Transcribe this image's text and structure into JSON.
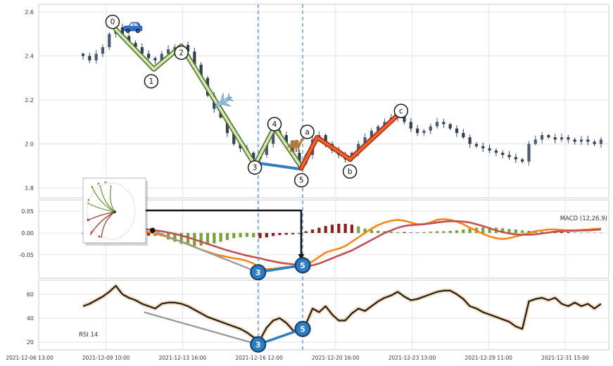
{
  "colors": {
    "accent_blue": "#2e7ec4",
    "impulse_green_edge": "#47702a",
    "impulse_green_fill": "#d6e8b0",
    "correction_edge": "#9e2d0e",
    "correction_fill": "#f2612e",
    "macd_line": "#f58518",
    "signal_line": "#c44e52",
    "hist_green": "#74a33c",
    "hist_red": "#8e1d1d",
    "candle_up": "#4a5a74",
    "candle_down": "#323e52",
    "vline": "#5f8cb8",
    "rsi_line": "#2b1a12",
    "rsi_glow": "#ecd9b8",
    "gray_trend": "#999999",
    "grid": "#e4e4e4",
    "panel_border": "#c9c9c9",
    "marker_fill": "#2e7ec4",
    "marker_edge": "#16406e"
  },
  "chart_data": {
    "type": "candlestick",
    "title": "",
    "x_labels": [
      "2021-12-06 13:00",
      "2021-12-09 10:00",
      "2021-12-13 16:00",
      "2021-12-16 12:00",
      "2021-12-20 16:00",
      "2021-12-23 13:00",
      "2021-12-29 11:00",
      "2021-12-31 15:00"
    ],
    "price_panel": {
      "y_ticks": [
        2.6,
        2.4,
        2.2,
        2.0,
        1.8
      ],
      "closes": [
        2.4,
        2.38,
        2.41,
        2.44,
        2.5,
        2.53,
        2.49,
        2.46,
        2.44,
        2.41,
        2.39,
        2.38,
        2.41,
        2.43,
        2.44,
        2.45,
        2.42,
        2.36,
        2.3,
        2.22,
        2.16,
        2.12,
        2.05,
        2.0,
        1.98,
        1.96,
        1.93,
        1.95,
        2.0,
        2.06,
        2.04,
        2.0,
        1.96,
        1.91,
        1.95,
        2.02,
        2.04,
        2.0,
        1.97,
        1.95,
        1.93,
        1.96,
        2.0,
        2.03,
        2.06,
        2.08,
        2.1,
        2.12,
        2.14,
        2.1,
        2.07,
        2.05,
        2.06,
        2.08,
        2.1,
        2.09,
        2.07,
        2.05,
        2.03,
        2.0,
        1.99,
        1.98,
        1.97,
        1.96,
        1.95,
        1.94,
        1.93,
        1.92,
        2.0,
        2.02,
        2.04,
        2.03,
        2.02,
        2.03,
        2.02,
        2.01,
        2.02,
        2.01,
        2.0,
        2.02
      ],
      "waves": [
        {
          "label": "0",
          "bar": 4.5,
          "price": 2.555
        },
        {
          "label": "1",
          "bar": 10.4,
          "price": 2.285
        },
        {
          "label": "2",
          "bar": 15.0,
          "price": 2.415
        },
        {
          "label": "3",
          "bar": 26.2,
          "price": 1.893
        },
        {
          "label": "4",
          "bar": 29.2,
          "price": 2.09
        },
        {
          "label": "5",
          "bar": 33.3,
          "price": 1.835
        },
        {
          "label": "a",
          "bar": 34.2,
          "price": 2.055
        },
        {
          "label": "b",
          "bar": 40.7,
          "price": 1.875
        },
        {
          "label": "c",
          "bar": 48.5,
          "price": 2.15
        }
      ],
      "impulse_line": [
        [
          5,
          2.52
        ],
        [
          10.8,
          2.34
        ],
        [
          15,
          2.445
        ],
        [
          26.2,
          1.905
        ],
        [
          29.2,
          2.075
        ],
        [
          33.3,
          1.895
        ]
      ],
      "divergence_line": [
        [
          26.2,
          1.915
        ],
        [
          33.3,
          1.885
        ]
      ],
      "correction_line": [
        [
          33.3,
          1.89
        ],
        [
          35.7,
          2.03
        ],
        [
          40.7,
          1.93
        ],
        [
          48.5,
          2.145
        ]
      ]
    },
    "macd_panel": {
      "label": "MACD (12,26,9)",
      "y_ticks": [
        0.05,
        0,
        -0.05
      ],
      "macd": [
        0.015,
        0.014,
        0.013,
        0.012,
        0.011,
        0.01,
        0.008,
        0.006,
        0.005,
        0.003,
        0.002,
        -0.002,
        -0.005,
        -0.01,
        -0.015,
        -0.02,
        -0.025,
        -0.032,
        -0.038,
        -0.043,
        -0.048,
        -0.052,
        -0.055,
        -0.058,
        -0.06,
        -0.064,
        -0.07,
        -0.08,
        -0.083,
        -0.082,
        -0.08,
        -0.078,
        -0.077,
        -0.078,
        -0.073,
        -0.065,
        -0.055,
        -0.045,
        -0.04,
        -0.036,
        -0.03,
        -0.02,
        -0.01,
        0.0,
        0.01,
        0.018,
        0.024,
        0.028,
        0.03,
        0.028,
        0.024,
        0.02,
        0.02,
        0.024,
        0.03,
        0.032,
        0.03,
        0.026,
        0.02,
        0.012,
        0.005,
        -0.002,
        -0.008,
        -0.012,
        -0.014,
        -0.012,
        -0.008,
        -0.004,
        0.0,
        0.004,
        0.006,
        0.008,
        0.008,
        0.007,
        0.006,
        0.006,
        0.007,
        0.008,
        0.009,
        0.01
      ],
      "signal": [
        0.018,
        0.017,
        0.017,
        0.016,
        0.015,
        0.014,
        0.013,
        0.012,
        0.01,
        0.009,
        0.008,
        0.006,
        0.004,
        0.001,
        -0.002,
        -0.006,
        -0.01,
        -0.015,
        -0.02,
        -0.025,
        -0.03,
        -0.035,
        -0.04,
        -0.044,
        -0.048,
        -0.052,
        -0.055,
        -0.058,
        -0.062,
        -0.065,
        -0.068,
        -0.07,
        -0.072,
        -0.074,
        -0.075,
        -0.074,
        -0.07,
        -0.064,
        -0.058,
        -0.052,
        -0.046,
        -0.04,
        -0.032,
        -0.024,
        -0.016,
        -0.008,
        0.0,
        0.006,
        0.012,
        0.016,
        0.018,
        0.019,
        0.02,
        0.022,
        0.024,
        0.026,
        0.027,
        0.027,
        0.026,
        0.024,
        0.02,
        0.016,
        0.011,
        0.006,
        0.002,
        -0.001,
        -0.003,
        -0.004,
        -0.004,
        -0.003,
        -0.001,
        0.001,
        0.003,
        0.004,
        0.005,
        0.005,
        0.006,
        0.006,
        0.007,
        0.008
      ],
      "hist": [
        -0.002,
        -0.002,
        -0.003,
        -0.003,
        -0.003,
        -0.004,
        -0.004,
        -0.005,
        -0.005,
        -0.005,
        -0.006,
        -0.007,
        -0.008,
        -0.015,
        -0.02,
        -0.025,
        -0.028,
        -0.03,
        -0.029,
        -0.027,
        -0.024,
        -0.02,
        -0.016,
        -0.012,
        -0.01,
        -0.009,
        -0.01,
        -0.012,
        -0.01,
        -0.007,
        -0.005,
        -0.004,
        -0.003,
        -0.002,
        0.004,
        0.008,
        0.012,
        0.016,
        0.019,
        0.021,
        0.021,
        0.019,
        0.015,
        0.01,
        0.007,
        0.005,
        0.004,
        0.003,
        0.002,
        0.002,
        0.001,
        0.001,
        0.002,
        0.003,
        0.004,
        0.004,
        0.005,
        0.006,
        0.008,
        0.01,
        0.012,
        0.013,
        0.013,
        0.012,
        0.011,
        0.009,
        0.008,
        0.006,
        0.005,
        0.004,
        0.003,
        0.003,
        0.002,
        0.002,
        0.002,
        0.001,
        0.001,
        0.001,
        0.001,
        0.001
      ],
      "hist_colors": "ggggggrrrrrggggggggggggggggrrrrrrrrrrrrrrrgggggggrrrgggggggggggggggggggrrrrggggg",
      "trend_line": [
        [
          10.6,
          0.006
        ],
        [
          26.7,
          -0.09
        ]
      ],
      "dot": [
        10.6,
        0.006
      ],
      "markers": [
        {
          "label": "3",
          "bar": 26.7,
          "value": -0.09
        },
        {
          "label": "5",
          "bar": 33.5,
          "value": -0.074
        }
      ]
    },
    "rsi_panel": {
      "label": "RSI 14",
      "y_ticks": [
        60,
        40,
        20
      ],
      "rsi": [
        50,
        52,
        55,
        58,
        62,
        67,
        60,
        57,
        55,
        52,
        50,
        48,
        52,
        53,
        53,
        52,
        50,
        47,
        44,
        41,
        39,
        37,
        35,
        33,
        31,
        28,
        24,
        22,
        32,
        38,
        40,
        36,
        30,
        27,
        35,
        48,
        45,
        50,
        43,
        38,
        38,
        44,
        48,
        46,
        50,
        54,
        57,
        59,
        62,
        58,
        55,
        56,
        58,
        60,
        62,
        63,
        63,
        60,
        56,
        50,
        48,
        45,
        43,
        41,
        39,
        37,
        33,
        31,
        54,
        56,
        57,
        55,
        57,
        52,
        50,
        53,
        50,
        52,
        48,
        52
      ],
      "trend_line": [
        [
          9.3,
          45
        ],
        [
          26.7,
          18
        ]
      ],
      "markers": [
        {
          "label": "3",
          "bar": 26.7,
          "value": 18
        },
        {
          "label": "5",
          "bar": 33.5,
          "value": 31
        }
      ]
    },
    "vlines_bars": [
      26.7,
      33.5
    ],
    "icons": [
      {
        "name": "car-icon",
        "bar": 7.6,
        "price": 2.53
      },
      {
        "name": "airplane-icon",
        "bar": 21.3,
        "price": 2.19,
        "rotate": 150
      },
      {
        "name": "camel-icon",
        "bar": 32.3,
        "price": 1.995
      }
    ]
  }
}
